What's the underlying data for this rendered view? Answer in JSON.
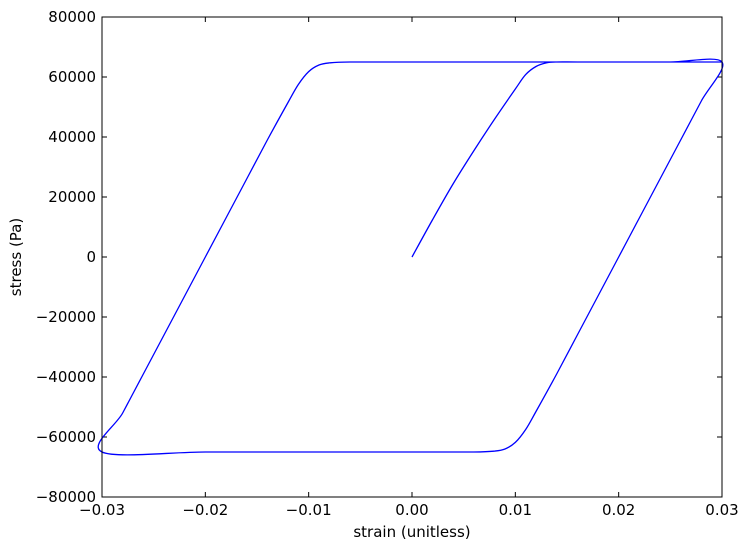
{
  "chart_data": {
    "type": "line",
    "xlabel": "strain (unitless)",
    "ylabel": "stress (Pa)",
    "xlim": [
      -0.03,
      0.03
    ],
    "ylim": [
      -80000,
      80000
    ],
    "xticks": [
      -0.03,
      -0.02,
      -0.01,
      0.0,
      0.01,
      0.02,
      0.03
    ],
    "xtick_labels": [
      "−0.03",
      "−0.02",
      "−0.01",
      "0.00",
      "0.01",
      "0.02",
      "0.03"
    ],
    "yticks": [
      -80000,
      -60000,
      -40000,
      -20000,
      0,
      20000,
      40000,
      60000,
      80000
    ],
    "ytick_labels": [
      "−80000",
      "−60000",
      "−40000",
      "−20000",
      "0",
      "20000",
      "40000",
      "60000",
      "80000"
    ],
    "grid": false,
    "series": [
      {
        "color": "#0000ff",
        "x": [
          0.0,
          0.002,
          0.004,
          0.006,
          0.008,
          0.01,
          0.011,
          0.012,
          0.013,
          0.014,
          0.016,
          0.02,
          0.025,
          0.03,
          0.028,
          0.026,
          0.024,
          0.022,
          0.02,
          0.018,
          0.016,
          0.014,
          0.012,
          0.011,
          0.01,
          0.009,
          0.008,
          0.006,
          0.0,
          -0.01,
          -0.02,
          -0.03,
          -0.028,
          -0.026,
          -0.024,
          -0.022,
          -0.02,
          -0.018,
          -0.016,
          -0.014,
          -0.012,
          -0.011,
          -0.01,
          -0.009,
          -0.008,
          -0.006,
          0.0,
          0.01,
          0.02,
          0.03
        ],
        "y": [
          0,
          12500,
          24500,
          35500,
          46000,
          56000,
          60800,
          63500,
          64700,
          65000,
          65000,
          65000,
          65000,
          65000,
          52000,
          39000,
          26000,
          13000,
          0,
          -13000,
          -26000,
          -39000,
          -51500,
          -57500,
          -61800,
          -64000,
          -64700,
          -65000,
          -65000,
          -65000,
          -65000,
          -65000,
          -52000,
          -39000,
          -26000,
          -13000,
          0,
          13000,
          26000,
          39000,
          51500,
          57500,
          61800,
          64000,
          64700,
          65000,
          65000,
          65000,
          65000,
          65000
        ]
      }
    ]
  }
}
